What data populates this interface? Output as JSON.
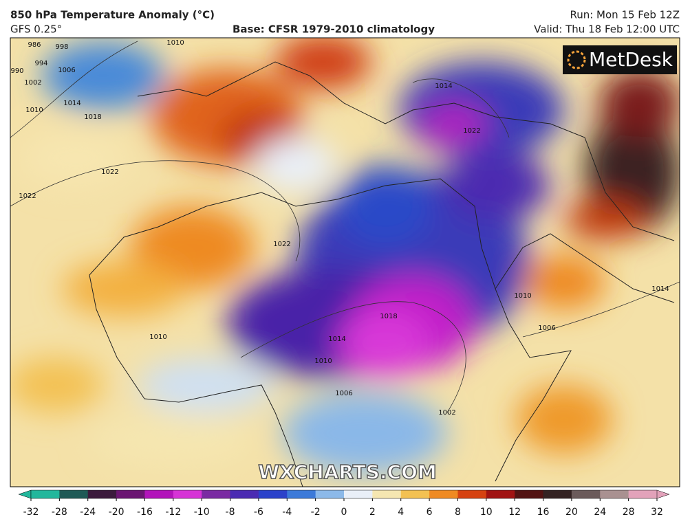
{
  "header": {
    "title": "850 hPa Temperature Anomaly (°C)",
    "model": "GFS 0.25°",
    "base": "Base: CFSR 1979-2010 climatology",
    "run": "Run: Mon 15 Feb 12Z",
    "valid": "Valid: Thu 18 Feb 12:00 UTC"
  },
  "logo": "MetDesk",
  "watermark": "WXCHARTS.COM",
  "isobars": {
    "labels": [
      986,
      990,
      994,
      998,
      1002,
      1006,
      1010,
      1014,
      1018,
      1022,
      1022,
      1010,
      1014,
      1022,
      1022,
      1018,
      1014,
      1010,
      1006,
      1006,
      1014,
      1010,
      1002,
      1010
    ]
  },
  "colorbar": {
    "ticks": [
      -32,
      -28,
      -24,
      -20,
      -16,
      -12,
      -10,
      -8,
      -6,
      -4,
      -2,
      0,
      2,
      4,
      6,
      8,
      10,
      12,
      16,
      20,
      24,
      28,
      32
    ],
    "colors": [
      "#22b79c",
      "#1f5a56",
      "#3b1a3c",
      "#6b1572",
      "#b213ba",
      "#d633d6",
      "#7a2ba2",
      "#4b2bb2",
      "#2b42ca",
      "#3c7ad9",
      "#8cb9e9",
      "#e9eff8",
      "#f5e6b1",
      "#f3c152",
      "#ef8a22",
      "#d64211",
      "#a11212",
      "#521212",
      "#332222",
      "#6b5b5b",
      "#a99191",
      "#e2a2ba"
    ]
  }
}
